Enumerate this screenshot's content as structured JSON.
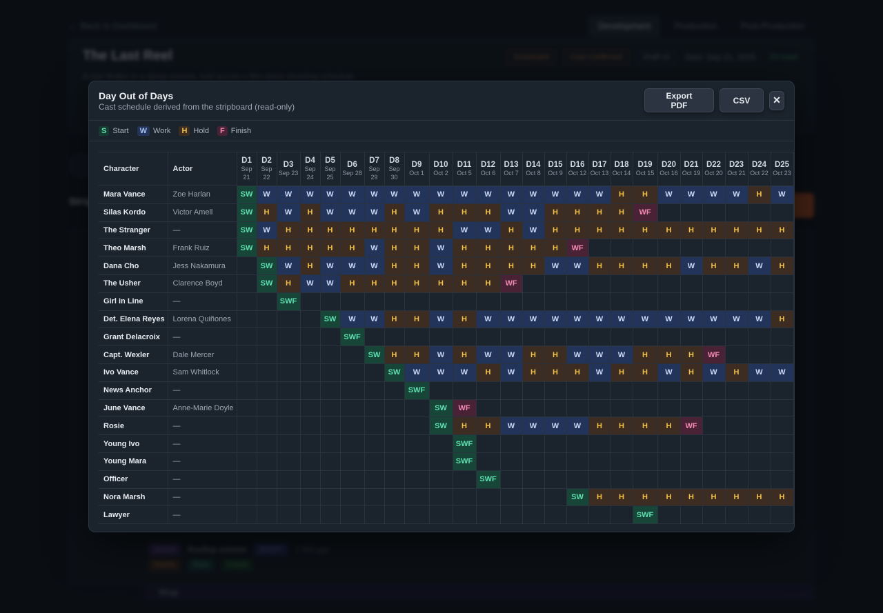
{
  "background": {
    "back_link": "← Back to Dashboard",
    "tabs": [
      "Development",
      "Production",
      "Post-Production"
    ],
    "title": "The Last Reel",
    "subtitle": "A noir thriller in a dying cinema, told across a film-stock shooting schedule.",
    "badges": [
      "Scheduled",
      "Cast Confirmed",
      "Draft v3",
      "Start: Sep 21, 2025",
      "On track"
    ],
    "section_label": "Stripboard",
    "footer_row": [
      "Scene",
      "Rooftop exterior",
      "NIGHT",
      "1 6/8 pgs"
    ],
    "footer_pills": [
      "Stunts",
      "Rain",
      "Crane"
    ],
    "footer_row2": "Wrap"
  },
  "modal": {
    "title": "Day Out of Days",
    "subtitle": "Cast schedule derived from the stripboard (read-only)",
    "export_pdf_label": "Export PDF",
    "csv_label": "CSV",
    "close_label": "✕"
  },
  "legend": [
    {
      "key": "S",
      "label": "Start",
      "tone": "S"
    },
    {
      "key": "W",
      "label": "Work",
      "tone": "W"
    },
    {
      "key": "H",
      "label": "Hold",
      "tone": "H"
    },
    {
      "key": "F",
      "label": "Finish",
      "tone": "F"
    }
  ],
  "table": {
    "character_header": "Character",
    "actor_header": "Actor",
    "days": [
      {
        "day": "D1",
        "date": "Sep 21"
      },
      {
        "day": "D2",
        "date": "Sep 22"
      },
      {
        "day": "D3",
        "date": "Sep 23"
      },
      {
        "day": "D4",
        "date": "Sep 24"
      },
      {
        "day": "D5",
        "date": "Sep 25"
      },
      {
        "day": "D6",
        "date": "Sep 28"
      },
      {
        "day": "D7",
        "date": "Sep 29"
      },
      {
        "day": "D8",
        "date": "Sep 30"
      },
      {
        "day": "D9",
        "date": "Oct 1"
      },
      {
        "day": "D10",
        "date": "Oct 2"
      },
      {
        "day": "D11",
        "date": "Oct 5"
      },
      {
        "day": "D12",
        "date": "Oct 6"
      },
      {
        "day": "D13",
        "date": "Oct 7"
      },
      {
        "day": "D14",
        "date": "Oct 8"
      },
      {
        "day": "D15",
        "date": "Oct 9"
      },
      {
        "day": "D16",
        "date": "Oct 12"
      },
      {
        "day": "D17",
        "date": "Oct 13"
      },
      {
        "day": "D18",
        "date": "Oct 14"
      },
      {
        "day": "D19",
        "date": "Oct 15"
      },
      {
        "day": "D20",
        "date": "Oct 16"
      },
      {
        "day": "D21",
        "date": "Oct 19"
      },
      {
        "day": "D22",
        "date": "Oct 20"
      },
      {
        "day": "D23",
        "date": "Oct 21"
      },
      {
        "day": "D24",
        "date": "Oct 22"
      },
      {
        "day": "D25",
        "date": "Oct 23"
      }
    ],
    "rows": [
      {
        "character": "Mara Vance",
        "actor": "Zoe Harlan",
        "cells": [
          "SW",
          "W",
          "W",
          "W",
          "W",
          "W",
          "W",
          "W",
          "W",
          "W",
          "W",
          "W",
          "W",
          "W",
          "W",
          "W",
          "W",
          "H",
          "H",
          "W",
          "W",
          "W",
          "W",
          "H",
          "W"
        ]
      },
      {
        "character": "Silas Kordo",
        "actor": "Victor Amell",
        "cells": [
          "SW",
          "H",
          "W",
          "H",
          "W",
          "W",
          "W",
          "H",
          "W",
          "H",
          "H",
          "H",
          "W",
          "W",
          "H",
          "H",
          "H",
          "H",
          "WF",
          "",
          "",
          "",
          "",
          "",
          ""
        ]
      },
      {
        "character": "The Stranger",
        "actor": "—",
        "cells": [
          "SW",
          "W",
          "H",
          "H",
          "H",
          "H",
          "H",
          "H",
          "H",
          "H",
          "W",
          "W",
          "H",
          "W",
          "H",
          "H",
          "H",
          "H",
          "H",
          "H",
          "H",
          "H",
          "H",
          "H",
          "H"
        ]
      },
      {
        "character": "Theo Marsh",
        "actor": "Frank Ruiz",
        "cells": [
          "SW",
          "H",
          "H",
          "H",
          "H",
          "H",
          "W",
          "H",
          "H",
          "W",
          "H",
          "H",
          "H",
          "H",
          "H",
          "WF",
          "",
          "",
          "",
          "",
          "",
          "",
          "",
          "",
          ""
        ]
      },
      {
        "character": "Dana Cho",
        "actor": "Jess Nakamura",
        "cells": [
          "",
          "SW",
          "W",
          "H",
          "W",
          "W",
          "W",
          "H",
          "H",
          "W",
          "H",
          "H",
          "H",
          "H",
          "W",
          "W",
          "H",
          "H",
          "H",
          "H",
          "W",
          "H",
          "H",
          "W",
          "H"
        ]
      },
      {
        "character": "The Usher",
        "actor": "Clarence Boyd",
        "cells": [
          "",
          "SW",
          "H",
          "W",
          "W",
          "H",
          "H",
          "H",
          "H",
          "H",
          "H",
          "H",
          "WF",
          "",
          "",
          "",
          "",
          "",
          "",
          "",
          "",
          "",
          "",
          "",
          ""
        ]
      },
      {
        "character": "Girl in Line",
        "actor": "—",
        "cells": [
          "",
          "",
          "SWF",
          "",
          "",
          "",
          "",
          "",
          "",
          "",
          "",
          "",
          "",
          "",
          "",
          "",
          "",
          "",
          "",
          "",
          "",
          "",
          "",
          "",
          ""
        ]
      },
      {
        "character": "Det. Elena Reyes",
        "actor": "Lorena Quiñones",
        "cells": [
          "",
          "",
          "",
          "",
          "SW",
          "W",
          "W",
          "H",
          "H",
          "W",
          "H",
          "W",
          "W",
          "W",
          "W",
          "W",
          "W",
          "W",
          "W",
          "W",
          "W",
          "W",
          "W",
          "W",
          "H"
        ]
      },
      {
        "character": "Grant Delacroix",
        "actor": "—",
        "cells": [
          "",
          "",
          "",
          "",
          "",
          "SWF",
          "",
          "",
          "",
          "",
          "",
          "",
          "",
          "",
          "",
          "",
          "",
          "",
          "",
          "",
          "",
          "",
          "",
          "",
          ""
        ]
      },
      {
        "character": "Capt. Wexler",
        "actor": "Dale Mercer",
        "cells": [
          "",
          "",
          "",
          "",
          "",
          "",
          "SW",
          "H",
          "H",
          "W",
          "H",
          "W",
          "W",
          "H",
          "H",
          "W",
          "W",
          "W",
          "H",
          "H",
          "H",
          "WF",
          "",
          "",
          ""
        ]
      },
      {
        "character": "Ivo Vance",
        "actor": "Sam Whitlock",
        "cells": [
          "",
          "",
          "",
          "",
          "",
          "",
          "",
          "SW",
          "W",
          "W",
          "W",
          "H",
          "W",
          "H",
          "H",
          "H",
          "W",
          "H",
          "H",
          "W",
          "H",
          "W",
          "H",
          "W",
          "W"
        ]
      },
      {
        "character": "News Anchor",
        "actor": "—",
        "cells": [
          "",
          "",
          "",
          "",
          "",
          "",
          "",
          "",
          "SWF",
          "",
          "",
          "",
          "",
          "",
          "",
          "",
          "",
          "",
          "",
          "",
          "",
          "",
          "",
          "",
          ""
        ]
      },
      {
        "character": "June Vance",
        "actor": "Anne-Marie Doyle",
        "cells": [
          "",
          "",
          "",
          "",
          "",
          "",
          "",
          "",
          "",
          "SW",
          "WF",
          "",
          "",
          "",
          "",
          "",
          "",
          "",
          "",
          "",
          "",
          "",
          "",
          "",
          ""
        ]
      },
      {
        "character": "Rosie",
        "actor": "—",
        "cells": [
          "",
          "",
          "",
          "",
          "",
          "",
          "",
          "",
          "",
          "SW",
          "H",
          "H",
          "W",
          "W",
          "W",
          "W",
          "H",
          "H",
          "H",
          "H",
          "WF",
          "",
          "",
          "",
          ""
        ]
      },
      {
        "character": "Young Ivo",
        "actor": "—",
        "cells": [
          "",
          "",
          "",
          "",
          "",
          "",
          "",
          "",
          "",
          "",
          "SWF",
          "",
          "",
          "",
          "",
          "",
          "",
          "",
          "",
          "",
          "",
          "",
          "",
          "",
          ""
        ]
      },
      {
        "character": "Young Mara",
        "actor": "—",
        "cells": [
          "",
          "",
          "",
          "",
          "",
          "",
          "",
          "",
          "",
          "",
          "SWF",
          "",
          "",
          "",
          "",
          "",
          "",
          "",
          "",
          "",
          "",
          "",
          "",
          "",
          ""
        ]
      },
      {
        "character": "Officer",
        "actor": "—",
        "cells": [
          "",
          "",
          "",
          "",
          "",
          "",
          "",
          "",
          "",
          "",
          "",
          "SWF",
          "",
          "",
          "",
          "",
          "",
          "",
          "",
          "",
          "",
          "",
          "",
          "",
          ""
        ]
      },
      {
        "character": "Nora Marsh",
        "actor": "—",
        "cells": [
          "",
          "",
          "",
          "",
          "",
          "",
          "",
          "",
          "",
          "",
          "",
          "",
          "",
          "",
          "",
          "SW",
          "H",
          "H",
          "H",
          "H",
          "H",
          "H",
          "H",
          "H",
          "H"
        ]
      },
      {
        "character": "Lawyer",
        "actor": "—",
        "cells": [
          "",
          "",
          "",
          "",
          "",
          "",
          "",
          "",
          "",
          "",
          "",
          "",
          "",
          "",
          "",
          "",
          "",
          "",
          "SWF",
          "",
          "",
          "",
          "",
          "",
          ""
        ]
      }
    ]
  },
  "colors": {
    "work": "#22345a",
    "hold": "#3c2c22",
    "start": "#174537",
    "finish": "#4a2236",
    "accent": "#d2561e"
  }
}
